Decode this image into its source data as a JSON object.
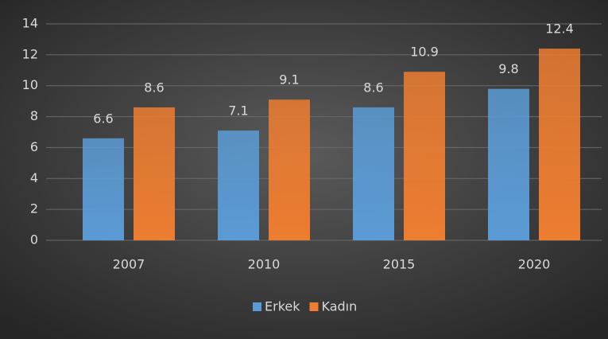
{
  "chart_data": {
    "type": "bar",
    "categories": [
      "2007",
      "2010",
      "2015",
      "2020"
    ],
    "series": [
      {
        "name": "Erkek",
        "color": "#5b9bd5",
        "values": [
          6.6,
          7.1,
          8.6,
          9.8
        ]
      },
      {
        "name": "Kadın",
        "color": "#ed7d31",
        "values": [
          8.6,
          9.1,
          10.9,
          12.4
        ]
      }
    ],
    "ylim": [
      0,
      14
    ],
    "yticks": [
      0,
      2,
      4,
      6,
      8,
      10,
      12,
      14
    ],
    "grid": true,
    "legend": "bottom",
    "data_labels": true
  }
}
